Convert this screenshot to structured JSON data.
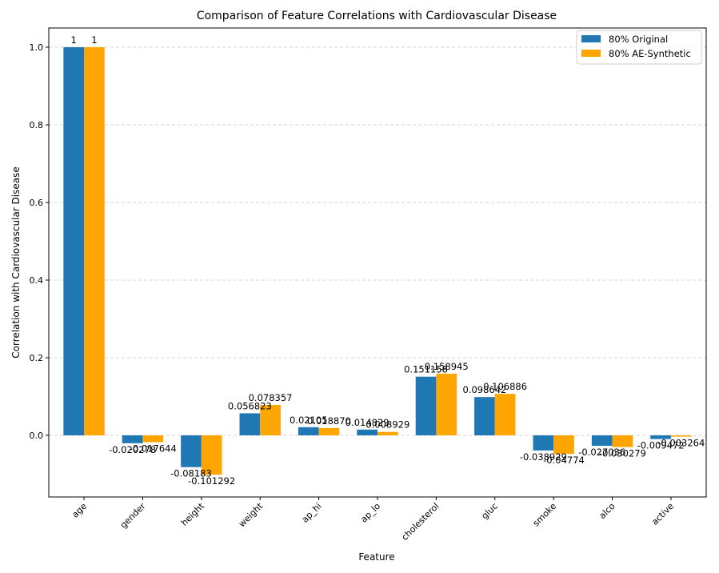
{
  "chart_data": {
    "type": "bar",
    "title": "Comparison of Feature Correlations with Cardiovascular Disease",
    "xlabel": "Feature",
    "ylabel": "Correlation with Cardiovascular Disease",
    "categories": [
      "age",
      "gender",
      "height",
      "weight",
      "ap_hi",
      "ap_lo",
      "cholesterol",
      "gluc",
      "smoke",
      "alco",
      "active"
    ],
    "series": [
      {
        "name": "80% Original",
        "color": "#1f77b4",
        "values": [
          1,
          -0.020278,
          -0.08183,
          0.056823,
          0.02105,
          0.014829,
          0.151158,
          0.098642,
          -0.038929,
          -0.027036,
          -0.009472
        ],
        "labels": [
          "1",
          "-0.020278",
          "-0.08183",
          "0.056823",
          "0.02105",
          "0.014829",
          "0.151158",
          "0.098642",
          "-0.038929",
          "-0.027036",
          "-0.009472"
        ]
      },
      {
        "name": "80% AE-Synthetic",
        "color": "#ffa500",
        "values": [
          1,
          -0.017644,
          -0.101292,
          0.078357,
          0.01887,
          0.008929,
          0.158945,
          0.106886,
          -0.04774,
          -0.030279,
          -0.003264
        ],
        "labels": [
          "1",
          "-0.017644",
          "-0.101292",
          "0.078357",
          "0.018870",
          "0.008929",
          "0.158945",
          "0.106886",
          "-0.04774",
          "-0.030279",
          "-0.003264"
        ]
      }
    ],
    "ylim": [
      -0.157,
      1.05
    ],
    "yticks": [
      0.0,
      0.2,
      0.4,
      0.6,
      0.8,
      1.0
    ],
    "ytick_labels": [
      "0.0",
      "0.2",
      "0.4",
      "0.6",
      "0.8",
      "1.0"
    ],
    "grid": "y-dashed",
    "legend_position": "top-right"
  }
}
